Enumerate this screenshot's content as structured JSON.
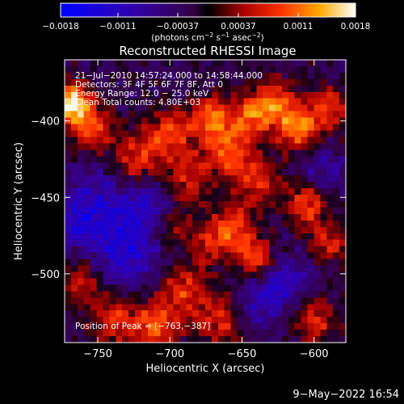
{
  "chart_data": {
    "type": "heatmap",
    "title": "Reconstructed RHESSI Image",
    "xlabel": "Heliocentric X (arcsec)",
    "ylabel": "Heliocentric Y (arcsec)",
    "xlim": [
      -773,
      -578
    ],
    "ylim": [
      -545,
      -360
    ],
    "xticks": [
      -750,
      -700,
      -650,
      -600
    ],
    "yticks": [
      -400,
      -450,
      -500
    ],
    "xtick_labels": [
      "−750",
      "−700",
      "−650",
      "−600"
    ],
    "ytick_labels": [
      "−400",
      "−450",
      "−500"
    ],
    "colorbar": {
      "range": [
        -0.0018,
        0.0018
      ],
      "ticks": [
        -0.0018,
        -0.0011,
        -0.00037,
        0.00037,
        0.0011,
        0.0018
      ],
      "tick_labels": [
        "−0.0018",
        "−0.0011",
        "−0.00037",
        "0.00037",
        "0.0011",
        "0.0018"
      ],
      "unit_base": "(photons cm",
      "unit_sup1": "−2",
      "unit_mid": " s",
      "unit_sup2": "−1",
      "unit_mid2": " asec",
      "unit_sup3": "−2",
      "unit_end": ")"
    },
    "annotations": {
      "time": "21−Jul−2010 14:57:24.000 to 14:58:44.000",
      "detectors": "Detectors: 3F 4F 5F 6F 7F 8F, Att 0",
      "energy": "Energy Range: 12.0 − 25.0 keV",
      "method": "Clean    Total counts: 4.80E+03",
      "peak": "Position of Peak = [−763,−387]"
    },
    "sources": [
      {
        "x": -768,
        "y": -388,
        "amp": 0.0019,
        "sigma": 9
      },
      {
        "x": -755,
        "y": -405,
        "amp": 0.0011,
        "sigma": 11
      },
      {
        "x": -722,
        "y": -425,
        "amp": 0.001,
        "sigma": 12
      },
      {
        "x": -700,
        "y": -408,
        "amp": 0.001,
        "sigma": 11
      },
      {
        "x": -688,
        "y": -438,
        "amp": 0.0009,
        "sigma": 12
      },
      {
        "x": -672,
        "y": -398,
        "amp": 0.0013,
        "sigma": 10
      },
      {
        "x": -660,
        "y": -420,
        "amp": 0.0011,
        "sigma": 12
      },
      {
        "x": -645,
        "y": -398,
        "amp": 0.001,
        "sigma": 10
      },
      {
        "x": -628,
        "y": -388,
        "amp": 0.0012,
        "sigma": 11
      },
      {
        "x": -612,
        "y": -405,
        "amp": 0.0014,
        "sigma": 10
      },
      {
        "x": -590,
        "y": -392,
        "amp": 0.0011,
        "sigma": 10
      },
      {
        "x": -640,
        "y": -440,
        "amp": 0.0009,
        "sigma": 12
      },
      {
        "x": -655,
        "y": -470,
        "amp": 0.0011,
        "sigma": 10
      },
      {
        "x": -640,
        "y": -490,
        "amp": 0.0013,
        "sigma": 9
      },
      {
        "x": -672,
        "y": -480,
        "amp": 0.0008,
        "sigma": 10
      },
      {
        "x": -605,
        "y": -455,
        "amp": 0.0011,
        "sigma": 10
      },
      {
        "x": -590,
        "y": -480,
        "amp": 0.0009,
        "sigma": 10
      },
      {
        "x": -700,
        "y": -470,
        "amp": 0.0007,
        "sigma": 10
      },
      {
        "x": -690,
        "y": -510,
        "amp": 0.001,
        "sigma": 12
      },
      {
        "x": -710,
        "y": -535,
        "amp": 0.0012,
        "sigma": 12
      },
      {
        "x": -740,
        "y": -530,
        "amp": 0.0009,
        "sigma": 12
      },
      {
        "x": -762,
        "y": -505,
        "amp": 0.0008,
        "sigma": 10
      },
      {
        "x": -665,
        "y": -530,
        "amp": 0.001,
        "sigma": 11
      },
      {
        "x": -600,
        "y": -530,
        "amp": 0.0009,
        "sigma": 11
      },
      {
        "x": -752,
        "y": -455,
        "amp": -0.0008,
        "sigma": 16
      },
      {
        "x": -730,
        "y": -485,
        "amp": -0.001,
        "sigma": 16
      },
      {
        "x": -715,
        "y": -455,
        "amp": -0.0008,
        "sigma": 13
      },
      {
        "x": -620,
        "y": -505,
        "amp": -0.0008,
        "sigma": 13
      },
      {
        "x": -640,
        "y": -520,
        "amp": -0.0006,
        "sigma": 12
      },
      {
        "x": -595,
        "y": -430,
        "amp": -0.0006,
        "sigma": 10
      },
      {
        "x": -765,
        "y": -470,
        "amp": -0.0006,
        "sigma": 10
      }
    ]
  },
  "footer": {
    "timestamp": "9−May−2022 16:54"
  }
}
